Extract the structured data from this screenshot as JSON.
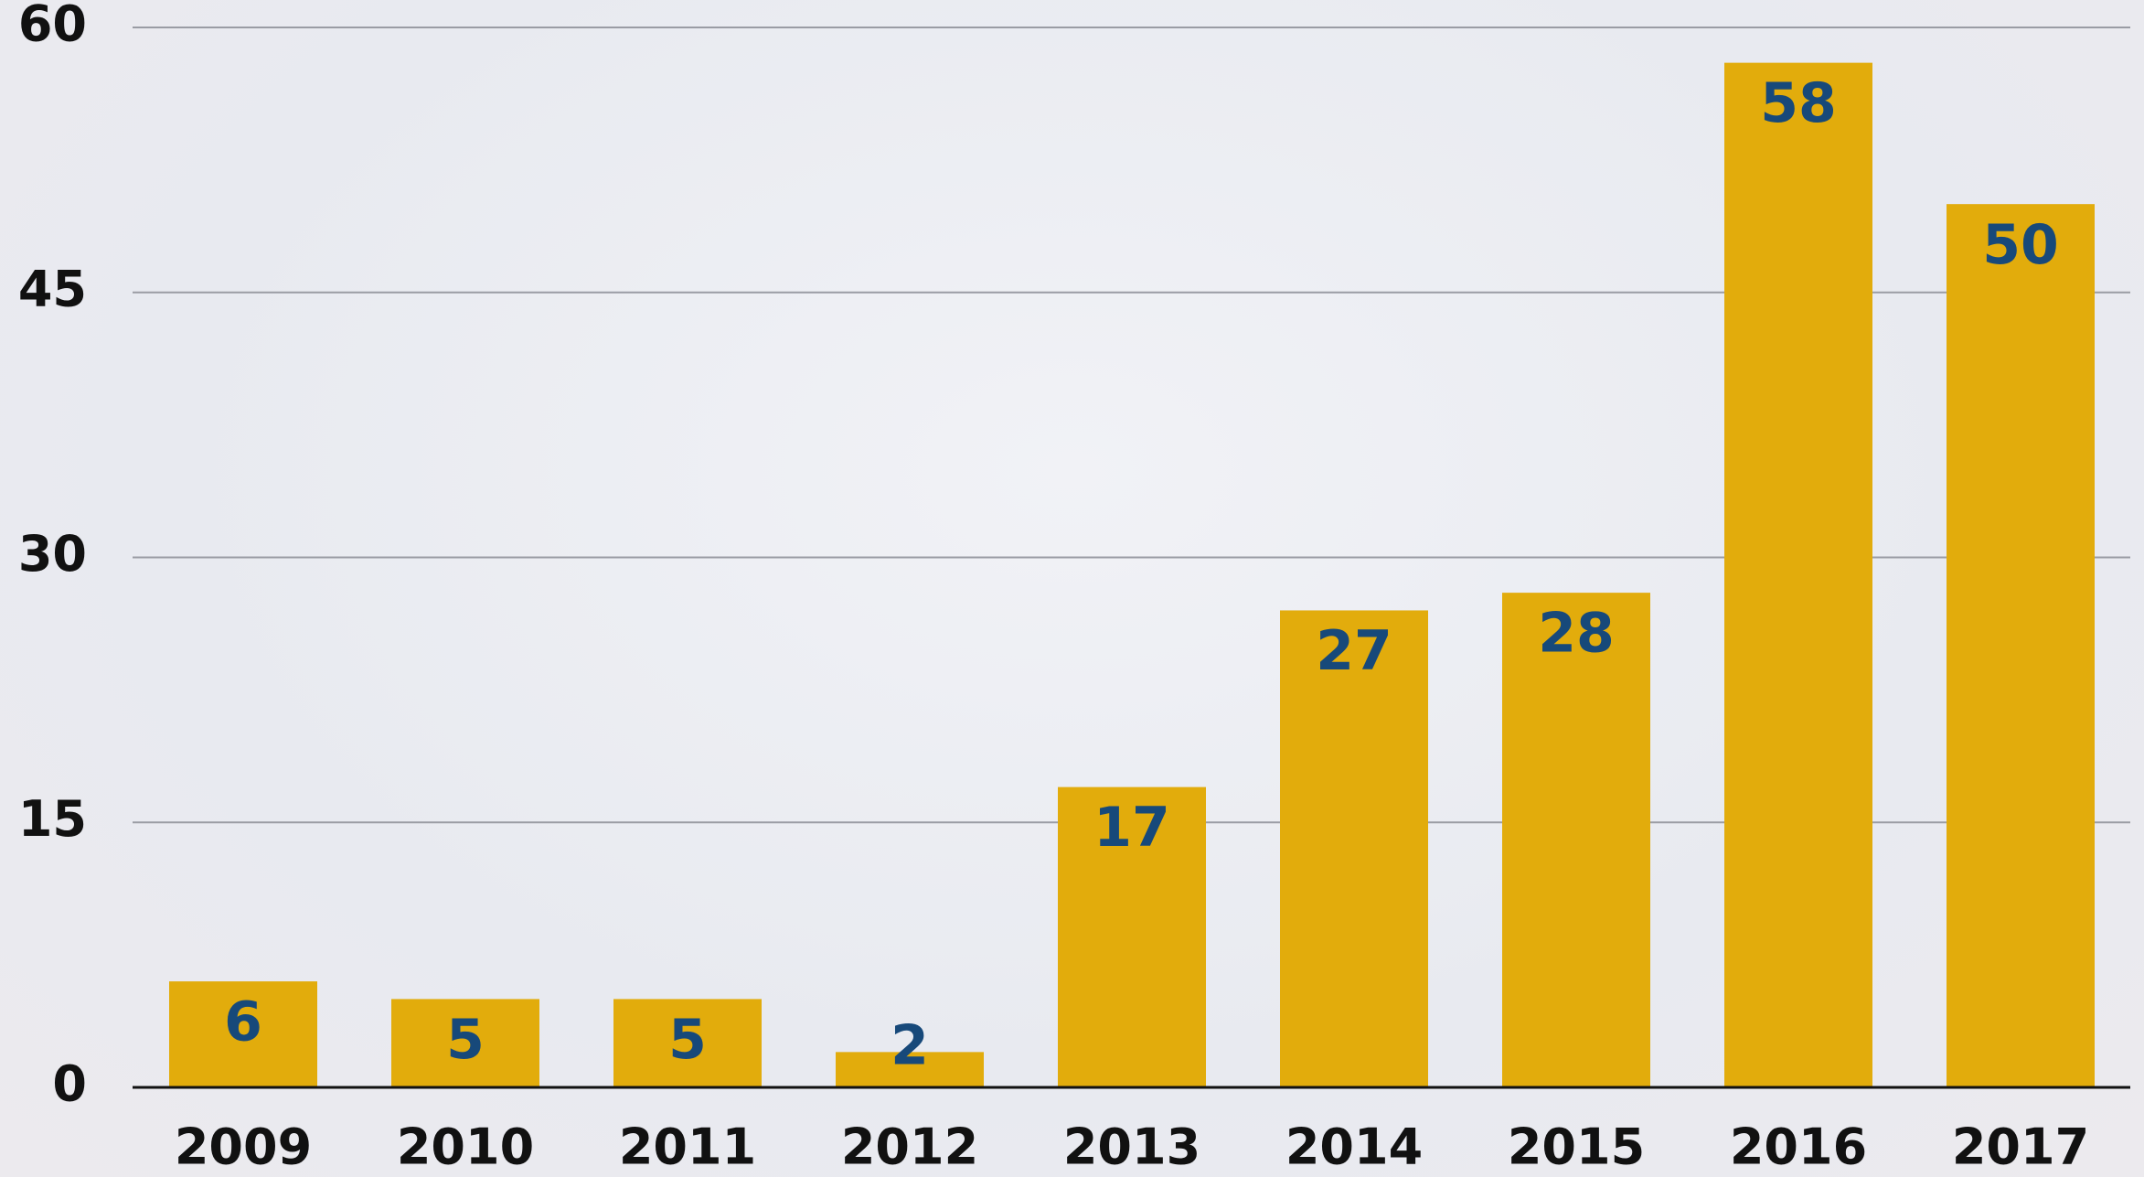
{
  "chart_data": {
    "type": "bar",
    "categories": [
      "2009",
      "2010",
      "2011",
      "2012",
      "2013",
      "2014",
      "2015",
      "2016",
      "2017"
    ],
    "values": [
      6,
      5,
      5,
      2,
      17,
      27,
      28,
      58,
      50
    ],
    "color": "#e2ac0c",
    "label_color": "#17497a",
    "ylim": [
      0,
      60
    ],
    "yticks": [
      0,
      15,
      30,
      45,
      60
    ],
    "grid": true
  }
}
